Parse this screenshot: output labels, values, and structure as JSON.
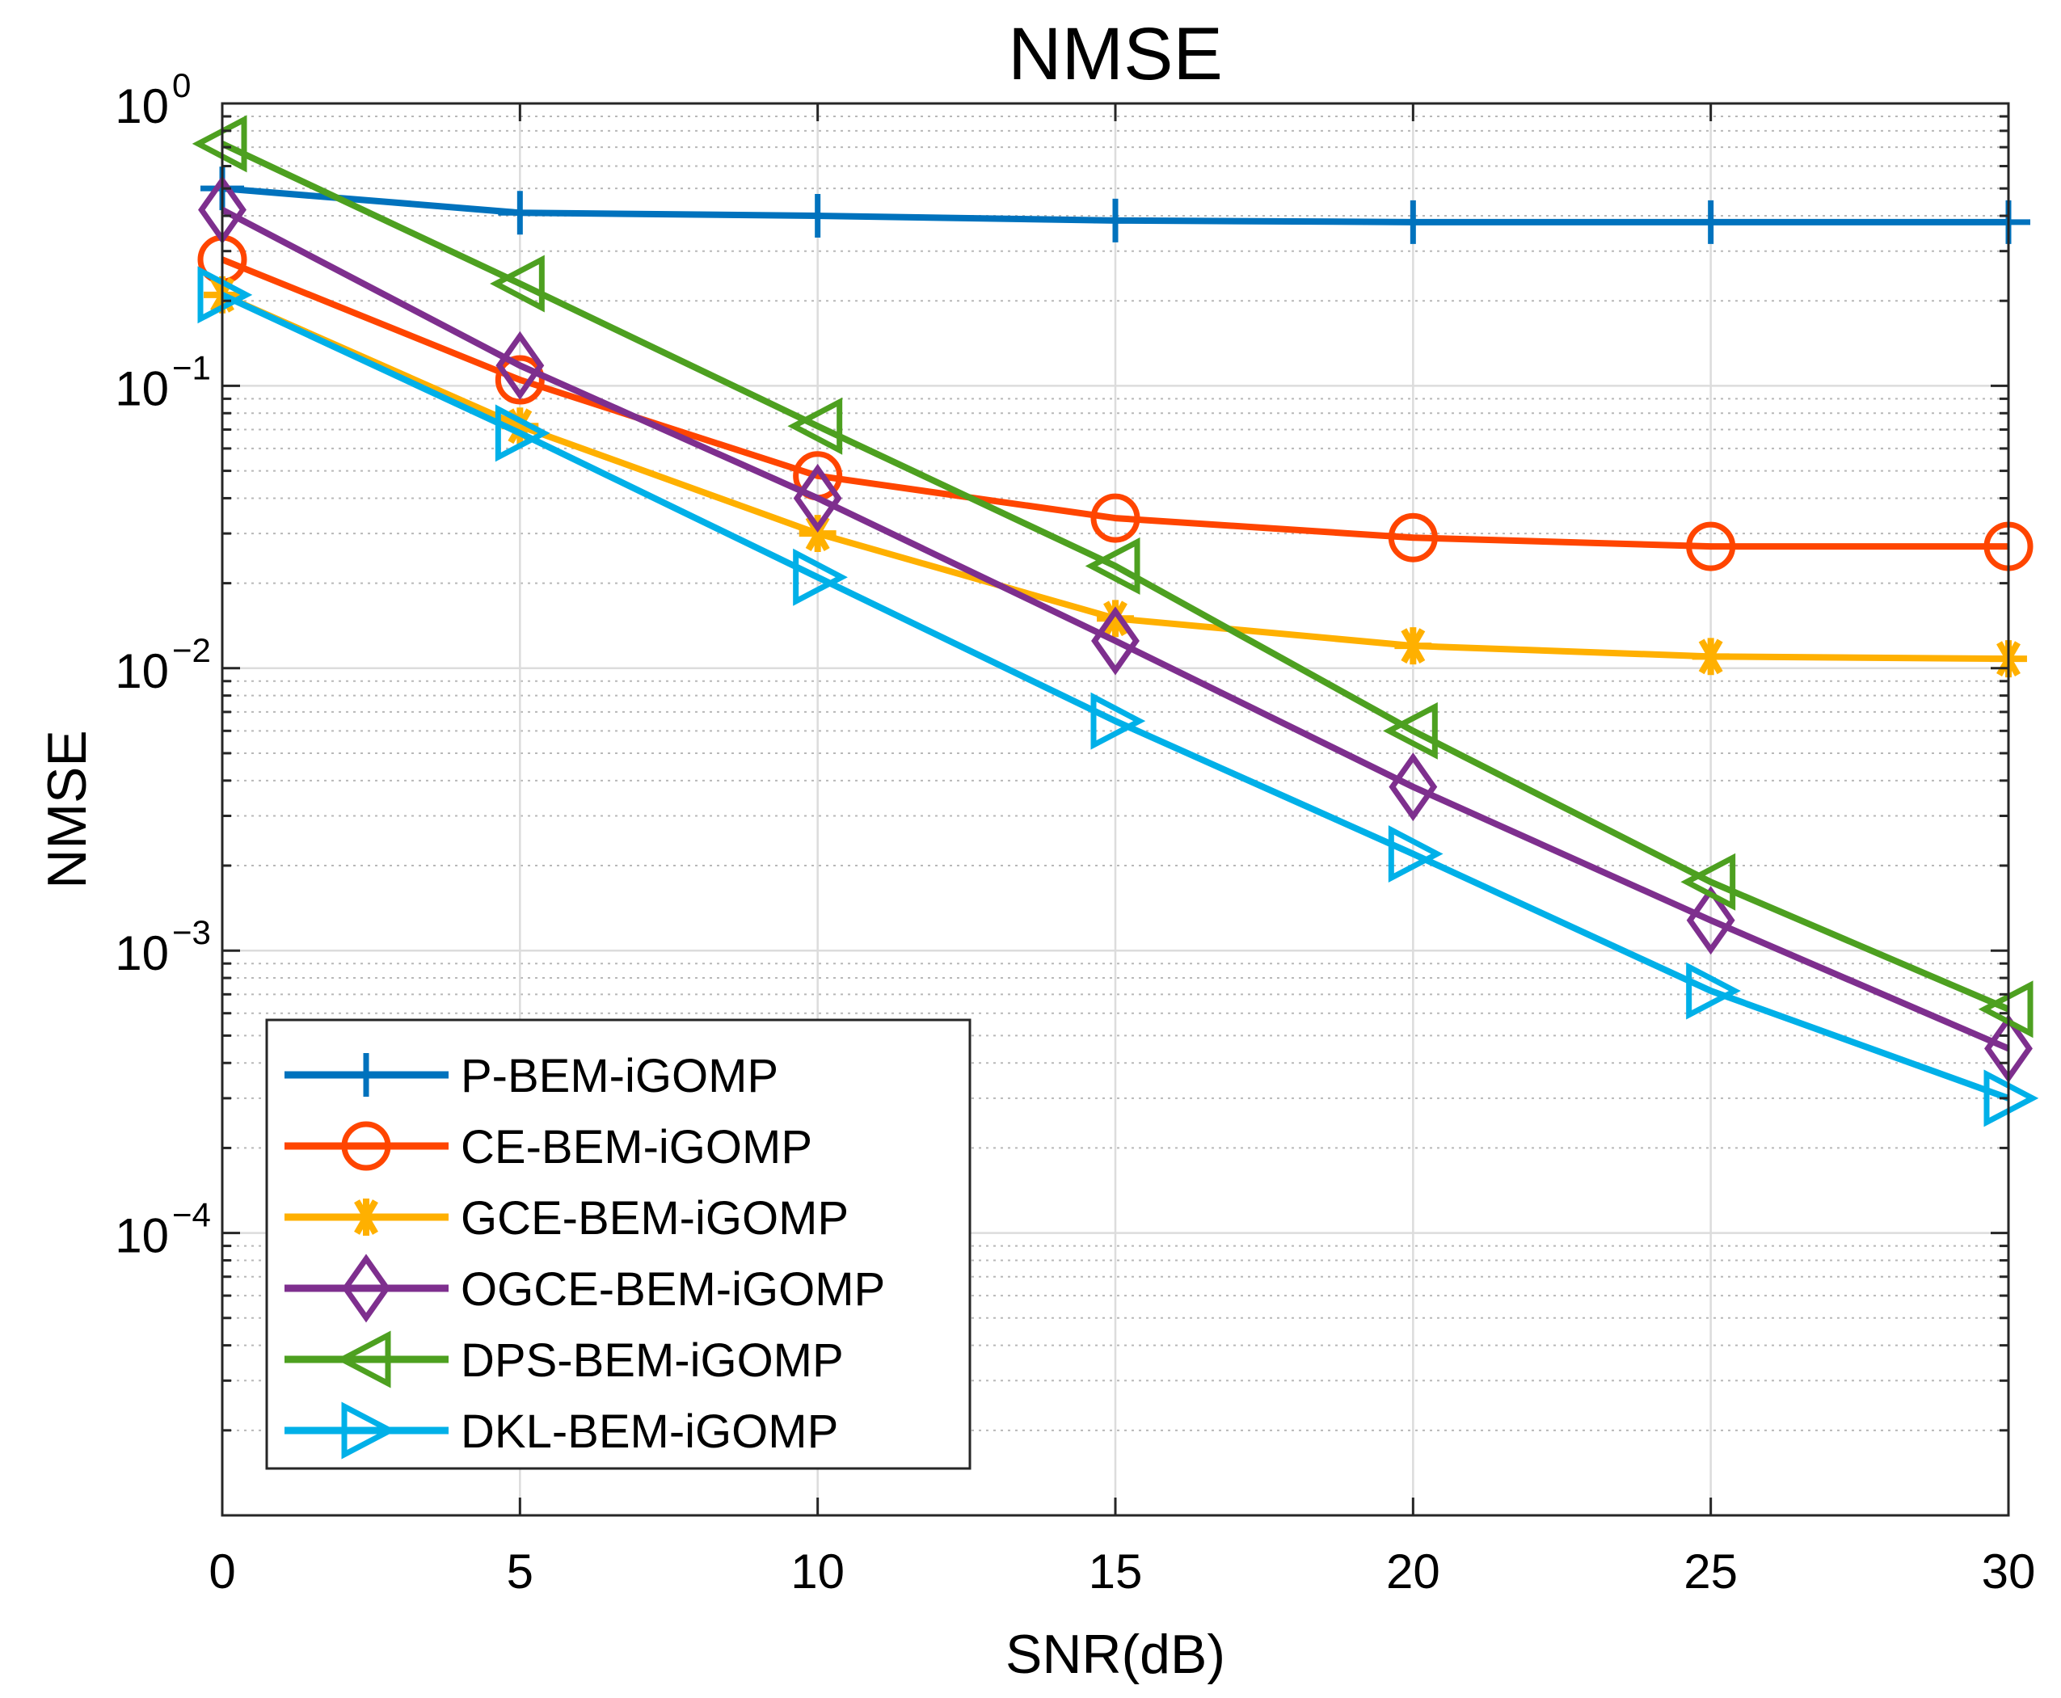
{
  "chart_data": {
    "type": "line",
    "title": "NMSE",
    "xlabel": "SNR(dB)",
    "ylabel": "NMSE",
    "x": [
      0,
      5,
      10,
      15,
      20,
      25,
      30
    ],
    "xlim": [
      0,
      30
    ],
    "ylim": [
      1e-05,
      1
    ],
    "yscale": "log",
    "x_ticks": [
      "0",
      "5",
      "10",
      "15",
      "20",
      "25",
      "30"
    ],
    "y_ticks": [
      {
        "value": 1,
        "base": "10",
        "exp": "0"
      },
      {
        "value": 0.1,
        "base": "10",
        "exp": "−1"
      },
      {
        "value": 0.01,
        "base": "10",
        "exp": "−2"
      },
      {
        "value": 0.001,
        "base": "10",
        "exp": "−3"
      },
      {
        "value": 0.0001,
        "base": "10",
        "exp": "−4"
      }
    ],
    "grid": true,
    "minor_grid": true,
    "legend_position": "bottom-left",
    "series": [
      {
        "name": "P-BEM-iGOMP",
        "color": "#0072BD",
        "marker": "plus",
        "values": [
          0.5,
          0.41,
          0.4,
          0.385,
          0.38,
          0.38,
          0.38
        ]
      },
      {
        "name": "CE-BEM-iGOMP",
        "color": "#FF4500",
        "marker": "circle",
        "values": [
          0.28,
          0.105,
          0.048,
          0.034,
          0.029,
          0.027,
          0.027
        ]
      },
      {
        "name": "GCE-BEM-iGOMP",
        "color": "#FFB000",
        "marker": "asterisk",
        "values": [
          0.21,
          0.072,
          0.03,
          0.015,
          0.012,
          0.011,
          0.0108
        ]
      },
      {
        "name": "OGCE-BEM-iGOMP",
        "color": "#7E2F8E",
        "marker": "diamond",
        "values": [
          0.42,
          0.118,
          0.04,
          0.0125,
          0.0038,
          0.00128,
          0.00045
        ]
      },
      {
        "name": "DPS-BEM-iGOMP",
        "color": "#4DA020",
        "marker": "triangle-left",
        "values": [
          0.72,
          0.23,
          0.072,
          0.023,
          0.006,
          0.00175,
          0.00062
        ]
      },
      {
        "name": "DKL-BEM-iGOMP",
        "color": "#00B0E8",
        "marker": "triangle-right",
        "values": [
          0.21,
          0.068,
          0.021,
          0.0065,
          0.0022,
          0.00072,
          0.0003
        ]
      }
    ]
  }
}
